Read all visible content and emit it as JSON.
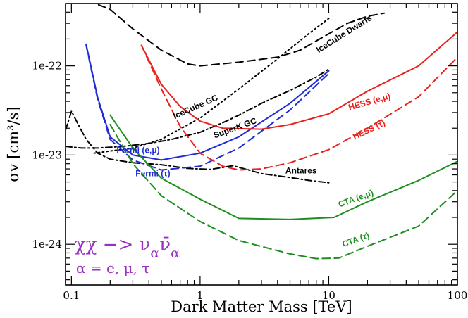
{
  "chart_data": {
    "type": "line",
    "title": "",
    "xlabel": "Dark Matter Mass [TeV]",
    "ylabel": "σv [cm³/s]",
    "x_scale": "log",
    "y_scale": "log",
    "xlim": [
      0.09,
      100
    ],
    "ylim": [
      3.5e-25,
      5e-22
    ],
    "x_ticks": [
      {
        "value": 0.1,
        "label": "0.1"
      },
      {
        "value": 1,
        "label": "1"
      },
      {
        "value": 10,
        "label": "10"
      },
      {
        "value": 100,
        "label": "100"
      }
    ],
    "y_ticks": [
      {
        "value": 1e-24,
        "label": "1e-24"
      },
      {
        "value": 1e-23,
        "label": "1e-23"
      },
      {
        "value": 1e-22,
        "label": "1e-22"
      }
    ],
    "grid": false,
    "series": [
      {
        "name": "IceCube Dwarfs",
        "color": "#000000",
        "dash": "dashed",
        "points": [
          [
            0.09,
            7e-22
          ],
          [
            0.13,
            5.5e-22
          ],
          [
            0.2,
            4.3e-22
          ],
          [
            0.3,
            2.6e-22
          ],
          [
            0.5,
            1.5e-22
          ],
          [
            0.8,
            1.05e-22
          ],
          [
            1,
            1e-22
          ],
          [
            2,
            1.1e-22
          ],
          [
            4,
            1.25e-22
          ],
          [
            6,
            1.5e-22
          ],
          [
            9,
            2.1e-22
          ],
          [
            14,
            3e-22
          ],
          [
            20,
            3.6e-22
          ],
          [
            27,
            3.9e-22
          ]
        ]
      },
      {
        "name": "IceCube GC",
        "color": "#000000",
        "dash": "dotted",
        "points": [
          [
            0.15,
            1.05e-23
          ],
          [
            0.3,
            1.2e-23
          ],
          [
            0.5,
            1.5e-23
          ],
          [
            1,
            2.6e-23
          ],
          [
            2,
            5.5e-23
          ],
          [
            4,
            1.2e-22
          ],
          [
            7,
            2.3e-22
          ],
          [
            10,
            3.4e-22
          ]
        ]
      },
      {
        "name": "SuperK GC",
        "color": "#000000",
        "dash": "dashdot",
        "points": [
          [
            0.09,
            1.25e-23
          ],
          [
            0.12,
            1.2e-23
          ],
          [
            0.16,
            1.2e-23
          ],
          [
            0.25,
            1.25e-23
          ],
          [
            0.4,
            1.35e-23
          ],
          [
            0.6,
            1.5e-23
          ],
          [
            1,
            1.8e-23
          ],
          [
            1.5,
            2.3e-23
          ],
          [
            2,
            2.8e-23
          ],
          [
            3,
            3.8e-23
          ],
          [
            5,
            5.3e-23
          ],
          [
            8,
            7.5e-23
          ],
          [
            10,
            9.2e-23
          ]
        ]
      },
      {
        "name": "Antares",
        "color": "#000000",
        "dash": "dashdot",
        "points": [
          [
            0.09,
            1.9e-23
          ],
          [
            0.1,
            3.1e-23
          ],
          [
            0.115,
            2.1e-23
          ],
          [
            0.13,
            1.5e-23
          ],
          [
            0.16,
            1.05e-23
          ],
          [
            0.2,
            9e-24
          ],
          [
            0.3,
            8.2e-24
          ],
          [
            0.5,
            7.8e-24
          ],
          [
            0.8,
            7.1e-24
          ],
          [
            1.2,
            6.9e-24
          ],
          [
            1.8,
            7.6e-24
          ],
          [
            2.3,
            6.9e-24
          ],
          [
            3,
            6.2e-24
          ],
          [
            5,
            5.6e-24
          ],
          [
            7,
            5.2e-24
          ],
          [
            10,
            4.9e-24
          ]
        ]
      },
      {
        "name": "Fermi (e,μ)",
        "color": "#1f2bd6",
        "dash": "solid",
        "points": [
          [
            0.13,
            1.75e-22
          ],
          [
            0.16,
            4.4e-23
          ],
          [
            0.2,
            1.6e-23
          ],
          [
            0.3,
            1e-23
          ],
          [
            0.5,
            8.8e-24
          ],
          [
            1,
            1.05e-23
          ],
          [
            2,
            1.6e-23
          ],
          [
            5,
            3.8e-23
          ],
          [
            10,
            8.8e-23
          ]
        ]
      },
      {
        "name": "Fermi (τ)",
        "color": "#1f2bd6",
        "dash": "dashed",
        "points": [
          [
            0.13,
            1.7e-22
          ],
          [
            0.16,
            4.2e-23
          ],
          [
            0.2,
            1.5e-23
          ],
          [
            0.3,
            8.8e-24
          ],
          [
            0.5,
            6.8e-24
          ],
          [
            1,
            7.5e-24
          ],
          [
            2,
            1.2e-23
          ],
          [
            5,
            3.2e-23
          ],
          [
            10,
            8.2e-23
          ]
        ]
      },
      {
        "name": "HESS (e,μ)",
        "color": "#e8211c",
        "dash": "solid",
        "points": [
          [
            0.35,
            1.7e-22
          ],
          [
            0.5,
            6.2e-23
          ],
          [
            0.7,
            3.5e-23
          ],
          [
            1,
            2.4e-23
          ],
          [
            1.5,
            2e-23
          ],
          [
            3,
            1.95e-23
          ],
          [
            5,
            2.2e-23
          ],
          [
            10,
            2.9e-23
          ],
          [
            20,
            5.2e-23
          ],
          [
            50,
            1e-22
          ],
          [
            100,
            2.4e-22
          ]
        ]
      },
      {
        "name": "HESS (τ)",
        "color": "#e8211c",
        "dash": "dashed",
        "points": [
          [
            0.35,
            1.7e-22
          ],
          [
            0.5,
            5.5e-23
          ],
          [
            0.7,
            2.1e-23
          ],
          [
            1,
            1.05e-23
          ],
          [
            1.5,
            7.5e-24
          ],
          [
            2,
            6.8e-24
          ],
          [
            3,
            7e-24
          ],
          [
            5,
            8.2e-24
          ],
          [
            10,
            1.15e-23
          ],
          [
            20,
            2e-23
          ],
          [
            50,
            4.5e-23
          ],
          [
            100,
            1.25e-22
          ]
        ]
      },
      {
        "name": "CTA (e,μ)",
        "color": "#1e8f1e",
        "dash": "solid",
        "points": [
          [
            0.2,
            2.8e-23
          ],
          [
            0.3,
            1.2e-23
          ],
          [
            0.5,
            5.5e-24
          ],
          [
            1,
            3.2e-24
          ],
          [
            2,
            1.95e-24
          ],
          [
            5,
            1.9e-24
          ],
          [
            11,
            2e-24
          ],
          [
            20,
            3e-24
          ],
          [
            50,
            5.2e-24
          ],
          [
            100,
            8.5e-24
          ]
        ]
      },
      {
        "name": "CTA (τ)",
        "color": "#1e8f1e",
        "dash": "dashed",
        "points": [
          [
            0.2,
            2.2e-23
          ],
          [
            0.3,
            8e-24
          ],
          [
            0.5,
            3.5e-24
          ],
          [
            1,
            1.8e-24
          ],
          [
            2,
            1.1e-24
          ],
          [
            5,
            7.8e-25
          ],
          [
            8,
            6.9e-25
          ],
          [
            12,
            7e-25
          ],
          [
            20,
            9.5e-25
          ],
          [
            50,
            1.6e-24
          ],
          [
            100,
            4e-24
          ]
        ]
      }
    ],
    "annotations": [
      {
        "series": "IceCube Dwarfs",
        "text": "IceCube Dwarfs",
        "color": "#000000"
      },
      {
        "series": "IceCube GC",
        "text": "IceCube GC",
        "color": "#000000"
      },
      {
        "series": "SuperK GC",
        "text": "SuperK GC",
        "color": "#000000"
      },
      {
        "series": "Antares",
        "text": "Antares",
        "color": "#000000"
      },
      {
        "series": "Fermi (e,μ)",
        "text": "Fermi (e,μ)",
        "color": "#1f2bd6"
      },
      {
        "series": "Fermi (τ)",
        "text": "Fermi (τ)",
        "color": "#1f2bd6"
      },
      {
        "series": "HESS (e,μ)",
        "text": "HESS (e,μ)",
        "color": "#e8211c"
      },
      {
        "series": "HESS (τ)",
        "text": "HESS (τ)",
        "color": "#e8211c"
      },
      {
        "series": "CTA (e,μ)",
        "text": "CTA (e,μ)",
        "color": "#1e8f1e"
      },
      {
        "series": "CTA (τ)",
        "text": "CTA (τ)",
        "color": "#1e8f1e"
      }
    ],
    "process_label": {
      "line1_main": "χχ −> ν",
      "line1_sub": "α",
      "line1_bar": "ν̄",
      "line1_sub2": "α",
      "line2": "α = e, μ, τ",
      "color": "#9b2fc4"
    }
  }
}
